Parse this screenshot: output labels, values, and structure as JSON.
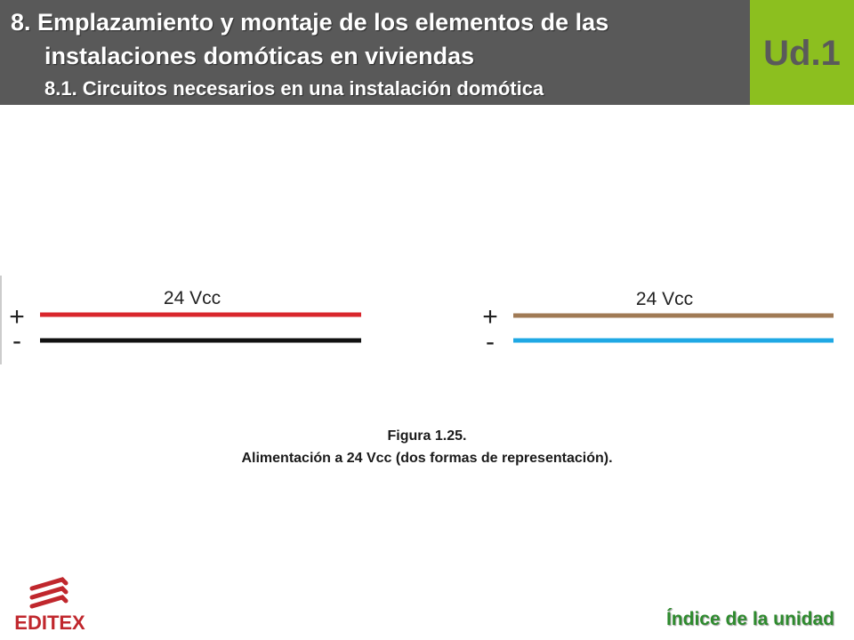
{
  "header": {
    "title_line1": "8. Emplazamiento y montaje de los elementos de las",
    "title_line2": "instalaciones domóticas en viviendas",
    "subtitle": "8.1. Circuitos necesarios en una instalación domótica",
    "unit_label": "Ud.1"
  },
  "diagram": {
    "left": {
      "voltage_label": "24 Vcc",
      "positive_symbol": "+",
      "negative_symbol": "-",
      "positive_color": "#d9262c",
      "negative_color": "#111111"
    },
    "right": {
      "voltage_label": "24 Vcc",
      "positive_symbol": "+",
      "negative_symbol": "-",
      "positive_color": "#a07a55",
      "negative_color": "#1fa8e4"
    }
  },
  "caption": {
    "figure_number": "Figura 1.25.",
    "text": "Alimentación a 24 Vcc (dos formas de representación)."
  },
  "footer": {
    "logo_text": "EDITEX",
    "logo_color": "#c0272d",
    "index_link": "Índice de la unidad"
  },
  "colors": {
    "header_bg": "#595959",
    "badge_bg": "#8cbf1f",
    "link": "#2e8b2e"
  }
}
